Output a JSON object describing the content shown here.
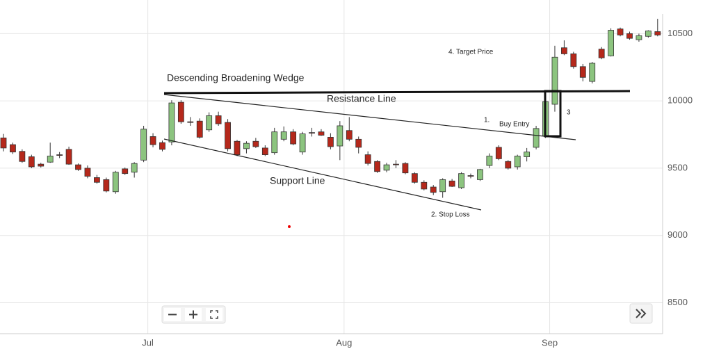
{
  "chart_data": {
    "type": "candlestick",
    "categories": [
      null,
      null,
      null,
      null,
      null,
      null,
      null,
      null,
      null,
      null,
      null,
      null,
      null,
      null,
      null,
      "Jul",
      null,
      null,
      null,
      null,
      null,
      null,
      null,
      null,
      null,
      null,
      null,
      null,
      null,
      null,
      null,
      null,
      null,
      null,
      null,
      null,
      "Aug",
      null,
      null,
      null,
      null,
      null,
      null,
      null,
      null,
      null,
      null,
      null,
      null,
      null,
      null,
      null,
      null,
      null,
      null,
      null,
      null,
      null,
      "Sep",
      null,
      null,
      null,
      null,
      null,
      null,
      null,
      null,
      null,
      null,
      null,
      null
    ],
    "open": [
      9725,
      9675,
      9625,
      9585,
      9530,
      9545,
      9600,
      9640,
      9525,
      9500,
      9430,
      9415,
      9325,
      9495,
      9470,
      9560,
      9735,
      9690,
      9695,
      9990,
      9845,
      9850,
      9785,
      9890,
      9840,
      9700,
      9645,
      9700,
      9650,
      9615,
      9715,
      9770,
      9620,
      9765,
      9770,
      9730,
      9665,
      9780,
      9715,
      9600,
      9550,
      9485,
      9530,
      9535,
      9460,
      9395,
      9360,
      9325,
      9405,
      9355,
      9445,
      9415,
      9520,
      9655,
      9550,
      9510,
      9585,
      9655,
      9740,
      9975,
      10395,
      10350,
      10255,
      10145,
      10385,
      10335,
      10535,
      10500,
      10455,
      10480,
      10515
    ],
    "high": [
      9755,
      9690,
      9640,
      9600,
      9540,
      9690,
      9620,
      9660,
      9535,
      9520,
      9450,
      9430,
      9480,
      9505,
      9545,
      9815,
      9760,
      9705,
      10005,
      10005,
      9880,
      9870,
      9915,
      9920,
      9865,
      9710,
      9700,
      9725,
      9670,
      9800,
      9810,
      9790,
      9770,
      9800,
      9790,
      9760,
      9850,
      9880,
      9735,
      9625,
      9560,
      9540,
      9560,
      9545,
      9470,
      9410,
      9375,
      9425,
      9420,
      9470,
      9460,
      9495,
      9610,
      9670,
      9560,
      9600,
      9650,
      9815,
      10000,
      10410,
      10450,
      10365,
      10275,
      10290,
      10400,
      10540,
      10545,
      10515,
      10500,
      10525,
      10610
    ],
    "low": [
      9625,
      9605,
      9540,
      9500,
      9505,
      9540,
      9575,
      9525,
      9480,
      9425,
      9385,
      9320,
      9310,
      9450,
      9430,
      9545,
      9655,
      9625,
      9670,
      9830,
      9815,
      9720,
      9770,
      9815,
      9625,
      9590,
      9610,
      9650,
      9590,
      9600,
      9700,
      9670,
      9600,
      9735,
      9740,
      9640,
      9560,
      9700,
      9610,
      9520,
      9465,
      9470,
      9500,
      9455,
      9385,
      9335,
      9300,
      9280,
      9360,
      9345,
      9425,
      9405,
      9500,
      9560,
      9490,
      9490,
      9550,
      9640,
      9725,
      9920,
      10340,
      10240,
      10145,
      10130,
      10310,
      10330,
      10480,
      10455,
      10440,
      10470,
      10480
    ],
    "close": [
      9650,
      9620,
      9550,
      9510,
      9515,
      9590,
      9595,
      9530,
      9490,
      9440,
      9395,
      9330,
      9470,
      9460,
      9535,
      9790,
      9675,
      9640,
      9985,
      9845,
      9840,
      9730,
      9890,
      9830,
      9645,
      9600,
      9685,
      9660,
      9600,
      9770,
      9770,
      9680,
      9755,
      9760,
      9745,
      9660,
      9815,
      9715,
      9655,
      9535,
      9475,
      9525,
      9525,
      9465,
      9395,
      9345,
      9320,
      9415,
      9365,
      9460,
      9440,
      9490,
      9590,
      9570,
      9500,
      9590,
      9620,
      9795,
      9995,
      10325,
      10350,
      10255,
      10175,
      10280,
      10320,
      10525,
      10490,
      10465,
      10485,
      10520,
      10490
    ],
    "up_color": "#8cc47f",
    "down_color": "#b5281b",
    "ylim": [
      8270,
      10750
    ],
    "yticks": [
      8500,
      9000,
      9500,
      10000,
      10500
    ],
    "grid": true,
    "annotations": [
      "Descending Broadening Wedge",
      "Resistance Line",
      "Support Line",
      "1.",
      "Buy Entry",
      "3",
      "4. Target Price",
      "2. Stop Loss"
    ]
  }
}
